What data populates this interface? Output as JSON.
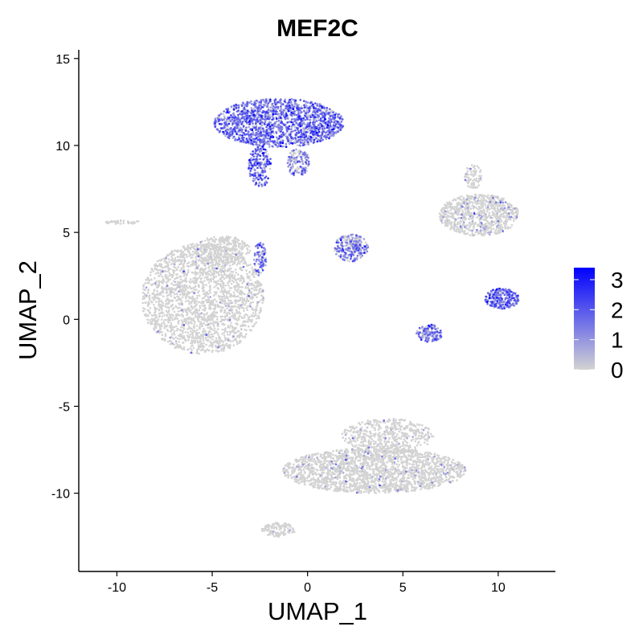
{
  "chart_data": {
    "type": "scatter",
    "title": "MEF2C",
    "xlabel": "UMAP_1",
    "ylabel": "UMAP_2",
    "xlim": [
      -12,
      13
    ],
    "ylim": [
      -14.5,
      15.5
    ],
    "x_ticks": [
      -10,
      -5,
      0,
      5,
      10
    ],
    "y_ticks": [
      -10,
      -5,
      0,
      5,
      10,
      15
    ],
    "grid": false,
    "color_scale": {
      "low": "#d3d3d3",
      "high": "#0000ff",
      "min": 0,
      "max": 3.4,
      "ticks": [
        0,
        1,
        2,
        3
      ],
      "legend_position": "right"
    },
    "clusters": [
      {
        "label": "top cluster (high expression)",
        "cx": -1.5,
        "cy": 11.3,
        "rx": 3.4,
        "ry": 1.4,
        "mean_expr": 1.3,
        "points": 1700
      },
      {
        "label": "top cluster tail",
        "cx": -2.5,
        "cy": 8.8,
        "rx": 0.6,
        "ry": 1.2,
        "mean_expr": 1.6,
        "points": 200
      },
      {
        "label": "top cluster right lobe",
        "cx": -0.5,
        "cy": 9.0,
        "rx": 0.6,
        "ry": 0.8,
        "mean_expr": 1.0,
        "points": 150
      },
      {
        "label": "left large cluster",
        "cx": -5.5,
        "cy": 1.2,
        "rx": 3.2,
        "ry": 3.2,
        "mean_expr": 0.05,
        "points": 2200
      },
      {
        "label": "left cluster upper",
        "cx": -4.5,
        "cy": 4.0,
        "rx": 1.5,
        "ry": 0.8,
        "mean_expr": 0.05,
        "points": 300
      },
      {
        "label": "bottom large cluster",
        "cx": 3.5,
        "cy": -8.7,
        "rx": 4.8,
        "ry": 1.3,
        "mean_expr": 0.1,
        "points": 2000
      },
      {
        "label": "bottom cluster upper",
        "cx": 4.2,
        "cy": -6.7,
        "rx": 2.4,
        "ry": 1.0,
        "mean_expr": 0.1,
        "points": 500
      },
      {
        "label": "bottom tail",
        "cx": -1.5,
        "cy": -12.1,
        "rx": 0.9,
        "ry": 0.4,
        "mean_expr": 0.02,
        "points": 120
      },
      {
        "label": "middle small cluster",
        "cx": 2.3,
        "cy": 4.1,
        "rx": 0.9,
        "ry": 0.8,
        "mean_expr": 1.1,
        "points": 260
      },
      {
        "label": "mid stream",
        "cx": -2.5,
        "cy": 3.5,
        "rx": 0.35,
        "ry": 1.0,
        "mean_expr": 1.3,
        "points": 90
      },
      {
        "label": "right upper cluster",
        "cx": 9.0,
        "cy": 6.0,
        "rx": 2.1,
        "ry": 1.2,
        "mean_expr": 0.25,
        "points": 800
      },
      {
        "label": "right upper spike",
        "cx": 8.7,
        "cy": 8.2,
        "rx": 0.5,
        "ry": 0.7,
        "mean_expr": 0.1,
        "points": 80
      },
      {
        "label": "right middle cluster",
        "cx": 10.2,
        "cy": 1.2,
        "rx": 0.9,
        "ry": 0.6,
        "mean_expr": 1.4,
        "points": 260
      },
      {
        "label": "right lower cluster",
        "cx": 6.4,
        "cy": -0.8,
        "rx": 0.7,
        "ry": 0.5,
        "mean_expr": 1.2,
        "points": 150
      },
      {
        "label": "far left streak",
        "cx": -9.7,
        "cy": 5.6,
        "rx": 0.9,
        "ry": 0.15,
        "mean_expr": 0.0,
        "points": 40
      }
    ]
  }
}
